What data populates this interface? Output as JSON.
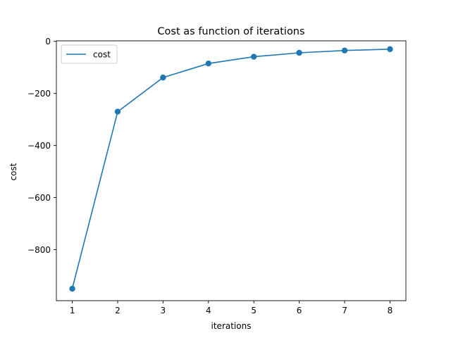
{
  "chart_data": {
    "type": "line",
    "title": "Cost as function of iterations",
    "xlabel": "iterations",
    "ylabel": "cost",
    "x": [
      1,
      2,
      3,
      4,
      5,
      6,
      7,
      8
    ],
    "series": [
      {
        "name": "cost",
        "values": [
          -950,
          -270,
          -139,
          -85,
          -59,
          -44,
          -35,
          -30
        ],
        "color": "#1f77b4",
        "markers": true
      }
    ],
    "xticks": [
      "1",
      "2",
      "3",
      "4",
      "5",
      "6",
      "7",
      "8"
    ],
    "yticks": [
      "0",
      "−200",
      "−400",
      "−600",
      "−800"
    ],
    "xlim": [
      0.65,
      8.35
    ],
    "ylim": [
      -996,
      2
    ],
    "grid": false,
    "legend": "top-left"
  }
}
